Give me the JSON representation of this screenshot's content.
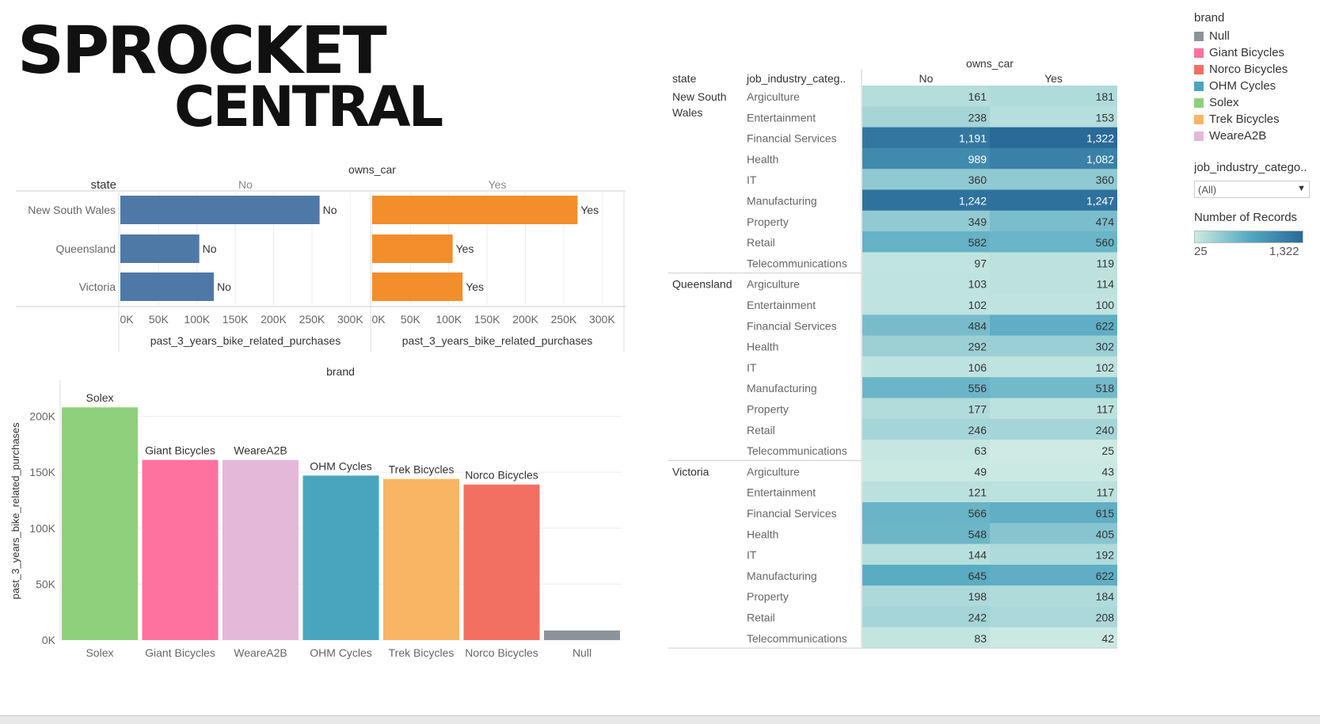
{
  "logo": {
    "line1": "SPROCKET",
    "line2": "CENTRAL"
  },
  "chart_data": [
    {
      "type": "bar",
      "orientation": "horizontal",
      "column_header": "owns_car",
      "row_header": "state",
      "categories": [
        "New South Wales",
        "Queensland",
        "Victoria"
      ],
      "panels": [
        {
          "name": "No",
          "values": [
            260000,
            103000,
            122000
          ],
          "labels": [
            "No",
            "No",
            "No"
          ],
          "color": "#4e79a7"
        },
        {
          "name": "Yes",
          "values": [
            268000,
            105000,
            118000
          ],
          "labels": [
            "Yes",
            "Yes",
            "Yes"
          ],
          "color": "#f28e2b"
        }
      ],
      "xlabel": "past_3_years_bike_related_purchases",
      "xticks": [
        "0K",
        "50K",
        "100K",
        "150K",
        "200K",
        "250K",
        "300K"
      ],
      "xlim": [
        0,
        310000
      ]
    },
    {
      "type": "bar",
      "title": "brand",
      "categories": [
        "Solex",
        "Giant Bicycles",
        "WeareA2B",
        "OHM Cycles",
        "Trek Bicycles",
        "Norco Bicycles",
        "Null"
      ],
      "values": [
        208000,
        161000,
        161000,
        147000,
        144000,
        139000,
        8500
      ],
      "colors": [
        "#8fd07b",
        "#fe729f",
        "#e4b8d9",
        "#49a5be",
        "#f8b563",
        "#f27062",
        "#8c9499"
      ],
      "bar_labels": [
        "Solex",
        "Giant Bicycles",
        "WeareA2B",
        "OHM Cycles",
        "Trek Bicycles",
        "Norco Bicycles",
        ""
      ],
      "ylabel": "past_3_years_bike_related_purchases",
      "yticks": [
        "0K",
        "50K",
        "100K",
        "150K",
        "200K"
      ],
      "ylim": [
        0,
        228000
      ]
    },
    {
      "type": "heatmap",
      "column_header": "owns_car",
      "row_headers": [
        "state",
        "job_industry_categ.."
      ],
      "columns": [
        "No",
        "Yes"
      ],
      "min": 25,
      "max": 1322,
      "groups": [
        {
          "state": "New South Wales",
          "rows": [
            {
              "industry": "Argiculture",
              "values": [
                161,
                181
              ],
              "labels": [
                "161",
                "181"
              ]
            },
            {
              "industry": "Entertainment",
              "values": [
                238,
                153
              ],
              "labels": [
                "238",
                "153"
              ]
            },
            {
              "industry": "Financial Services",
              "values": [
                1191,
                1322
              ],
              "labels": [
                "1,191",
                "1,322"
              ]
            },
            {
              "industry": "Health",
              "values": [
                989,
                1082
              ],
              "labels": [
                "989",
                "1,082"
              ]
            },
            {
              "industry": "IT",
              "values": [
                360,
                360
              ],
              "labels": [
                "360",
                "360"
              ]
            },
            {
              "industry": "Manufacturing",
              "values": [
                1242,
                1247
              ],
              "labels": [
                "1,242",
                "1,247"
              ]
            },
            {
              "industry": "Property",
              "values": [
                349,
                474
              ],
              "labels": [
                "349",
                "474"
              ]
            },
            {
              "industry": "Retail",
              "values": [
                582,
                560
              ],
              "labels": [
                "582",
                "560"
              ]
            },
            {
              "industry": "Telecommunications",
              "values": [
                97,
                119
              ],
              "labels": [
                "97",
                "119"
              ]
            }
          ]
        },
        {
          "state": "Queensland",
          "rows": [
            {
              "industry": "Argiculture",
              "values": [
                103,
                114
              ],
              "labels": [
                "103",
                "114"
              ]
            },
            {
              "industry": "Entertainment",
              "values": [
                102,
                100
              ],
              "labels": [
                "102",
                "100"
              ]
            },
            {
              "industry": "Financial Services",
              "values": [
                484,
                622
              ],
              "labels": [
                "484",
                "622"
              ]
            },
            {
              "industry": "Health",
              "values": [
                292,
                302
              ],
              "labels": [
                "292",
                "302"
              ]
            },
            {
              "industry": "IT",
              "values": [
                106,
                102
              ],
              "labels": [
                "106",
                "102"
              ]
            },
            {
              "industry": "Manufacturing",
              "values": [
                556,
                518
              ],
              "labels": [
                "556",
                "518"
              ]
            },
            {
              "industry": "Property",
              "values": [
                177,
                117
              ],
              "labels": [
                "177",
                "117"
              ]
            },
            {
              "industry": "Retail",
              "values": [
                246,
                240
              ],
              "labels": [
                "246",
                "240"
              ]
            },
            {
              "industry": "Telecommunications",
              "values": [
                63,
                25
              ],
              "labels": [
                "63",
                "25"
              ]
            }
          ]
        },
        {
          "state": "Victoria",
          "rows": [
            {
              "industry": "Argiculture",
              "values": [
                49,
                43
              ],
              "labels": [
                "49",
                "43"
              ]
            },
            {
              "industry": "Entertainment",
              "values": [
                121,
                117
              ],
              "labels": [
                "121",
                "117"
              ]
            },
            {
              "industry": "Financial Services",
              "values": [
                566,
                615
              ],
              "labels": [
                "566",
                "615"
              ]
            },
            {
              "industry": "Health",
              "values": [
                548,
                405
              ],
              "labels": [
                "548",
                "405"
              ]
            },
            {
              "industry": "IT",
              "values": [
                144,
                192
              ],
              "labels": [
                "144",
                "192"
              ]
            },
            {
              "industry": "Manufacturing",
              "values": [
                645,
                622
              ],
              "labels": [
                "645",
                "622"
              ]
            },
            {
              "industry": "Property",
              "values": [
                198,
                184
              ],
              "labels": [
                "198",
                "184"
              ]
            },
            {
              "industry": "Retail",
              "values": [
                242,
                208
              ],
              "labels": [
                "242",
                "208"
              ]
            },
            {
              "industry": "Telecommunications",
              "values": [
                83,
                42
              ],
              "labels": [
                "83",
                "42"
              ]
            }
          ]
        }
      ]
    }
  ],
  "legend": {
    "title": "brand",
    "items": [
      {
        "label": "Null",
        "color": "#8c9499"
      },
      {
        "label": "Giant Bicycles",
        "color": "#fe729f"
      },
      {
        "label": "Norco Bicycles",
        "color": "#f27062"
      },
      {
        "label": "OHM Cycles",
        "color": "#49a5be"
      },
      {
        "label": "Solex",
        "color": "#8fd07b"
      },
      {
        "label": "Trek Bicycles",
        "color": "#f8b563"
      },
      {
        "label": "WeareA2B",
        "color": "#e4b8d9"
      }
    ]
  },
  "filter": {
    "title": "job_industry_catego..",
    "value": "(All)"
  },
  "color_ramp": {
    "title": "Number of Records",
    "min_label": "25",
    "max_label": "1,322"
  }
}
